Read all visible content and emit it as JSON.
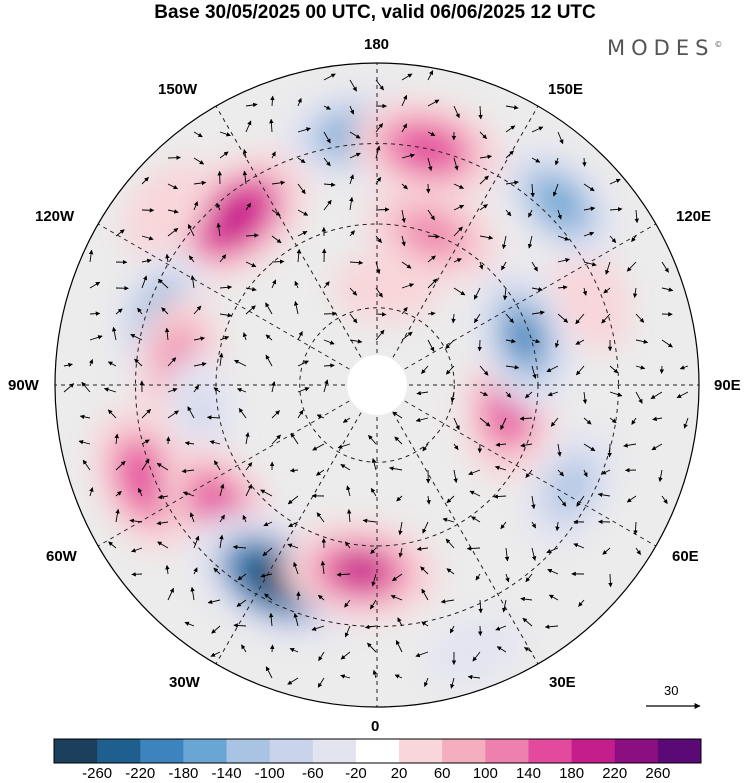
{
  "title": "Base 30/05/2025 00 UTC, valid 06/06/2025 12 UTC",
  "logo": "MODES",
  "logo_mark": "©",
  "map_labels": {
    "top": "180",
    "bottom": "0",
    "left": "90W",
    "right": "90E",
    "upper_left": "150W",
    "upper_right": "150E",
    "left_upper": "120W",
    "right_upper": "120E",
    "left_lower": "60W",
    "right_lower": "60E",
    "lower_left": "30W",
    "lower_right": "30E"
  },
  "vector_reference": "30",
  "colorbar": {
    "colors": [
      "#1c3f5e",
      "#1f5f8f",
      "#3b84bd",
      "#6aa6d4",
      "#a9c4e3",
      "#c9d3ea",
      "#e4e4f1",
      "#ffffff",
      "#f8d6d9",
      "#f4aebe",
      "#ee80ad",
      "#e34a9e",
      "#c41e8c",
      "#8c0f81",
      "#5a0a76"
    ],
    "labels": [
      "-260",
      "-220",
      "-180",
      "-140",
      "-100",
      "-60",
      "-20",
      "20",
      "60",
      "100",
      "140",
      "180",
      "220",
      "260"
    ]
  },
  "anomalies": [
    {
      "lon": -175,
      "r": 0.78,
      "value": -170
    },
    {
      "lon": -140,
      "r": 0.68,
      "value": 210
    },
    {
      "lon": -130,
      "r": 0.85,
      "value": 60
    },
    {
      "lon": -107,
      "r": 0.7,
      "value": -150
    },
    {
      "lon": -97,
      "r": 0.62,
      "value": 120
    },
    {
      "lon": -82,
      "r": 0.55,
      "value": -60
    },
    {
      "lon": -68,
      "r": 0.78,
      "value": 170
    },
    {
      "lon": -52,
      "r": 0.62,
      "value": 160
    },
    {
      "lon": -28,
      "r": 0.68,
      "value": -270
    },
    {
      "lon": -5,
      "r": 0.58,
      "value": 190
    },
    {
      "lon": 20,
      "r": 0.88,
      "value": -40
    },
    {
      "lon": 62,
      "r": 0.68,
      "value": -110
    },
    {
      "lon": 82,
      "r": 0.42,
      "value": 180
    },
    {
      "lon": 108,
      "r": 0.48,
      "value": -180
    },
    {
      "lon": 112,
      "r": 0.72,
      "value": 60
    },
    {
      "lon": 135,
      "r": 0.8,
      "value": -150
    },
    {
      "lon": 160,
      "r": 0.5,
      "value": 140
    },
    {
      "lon": 168,
      "r": 0.75,
      "value": 180
    },
    {
      "lon": 175,
      "r": 0.3,
      "value": 50
    }
  ]
}
